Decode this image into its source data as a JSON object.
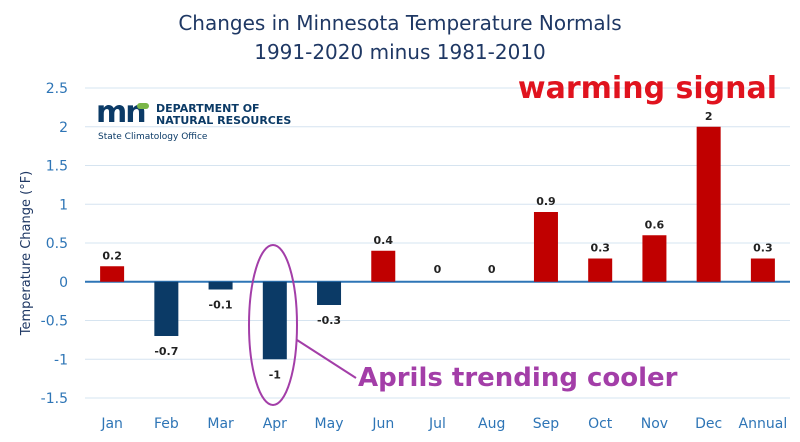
{
  "chart_data": {
    "type": "bar",
    "title": "Changes in Minnesota Temperature Normals",
    "subtitle": "1991-2020 minus 1981-2010",
    "ylabel": "Temperature  Change (°F)",
    "xlabel": "",
    "ylim": [
      -1.5,
      2.5
    ],
    "yticks": [
      2.5,
      2,
      1.5,
      1,
      0.5,
      0,
      -0.5,
      -1,
      -1.5
    ],
    "grid": true,
    "categories": [
      "Jan",
      "Feb",
      "Mar",
      "Apr",
      "May",
      "Jun",
      "Jul",
      "Aug",
      "Sep",
      "Oct",
      "Nov",
      "Dec",
      "Annual"
    ],
    "values": [
      0.2,
      -0.7,
      -0.1,
      -1,
      -0.3,
      0.4,
      0,
      0,
      0.9,
      0.3,
      0.6,
      2,
      0.3
    ],
    "data_labels": [
      "0.2",
      "-0.7",
      "-0.1",
      "-1",
      "-0.3",
      "0.4",
      "0",
      "0",
      "0.9",
      "0.3",
      "0.6",
      "2",
      "0.3"
    ],
    "colors": {
      "positive": "#c00000",
      "negative": "#0b3a66",
      "text": "#1f3864",
      "axis": "#2e75b6",
      "grid": "#d6e4f0"
    },
    "annotations": [
      {
        "text": "warming signal",
        "color": "#e0131e"
      },
      {
        "text": "Aprils trending cooler",
        "color": "#a33ea8",
        "target": "Apr"
      }
    ]
  },
  "logo": {
    "line1": "DEPARTMENT OF",
    "line2": "NATURAL RESOURCES",
    "line3": "State Climatology Office",
    "mark": "mn"
  }
}
